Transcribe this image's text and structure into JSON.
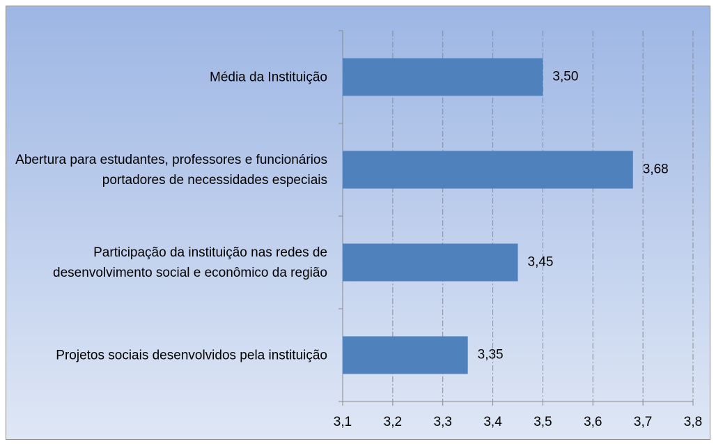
{
  "chart_data": {
    "type": "barh",
    "categories": [
      "Média da Instituição",
      "Abertura para estudantes, professores e funcionários portadores de necessidades especiais",
      "Participação da instituição nas redes de desenvolvimento social e econômico da região",
      "Projetos sociais desenvolvidos pela instituição"
    ],
    "values": [
      3.5,
      3.68,
      3.45,
      3.35
    ],
    "value_labels": [
      "3,50",
      "3,68",
      "3,45",
      "3,35"
    ],
    "color": "#4f81bd",
    "xlim": [
      3.1,
      3.8
    ],
    "xticks": [
      {
        "value": 3.1,
        "label": "3,1"
      },
      {
        "value": 3.2,
        "label": "3,2"
      },
      {
        "value": 3.3,
        "label": "3,3"
      },
      {
        "value": 3.4,
        "label": "3,4"
      },
      {
        "value": 3.5,
        "label": "3,5"
      },
      {
        "value": 3.6,
        "label": "3,6"
      },
      {
        "value": 3.7,
        "label": "3,7"
      },
      {
        "value": 3.8,
        "label": "3,8"
      }
    ],
    "grid": true
  }
}
